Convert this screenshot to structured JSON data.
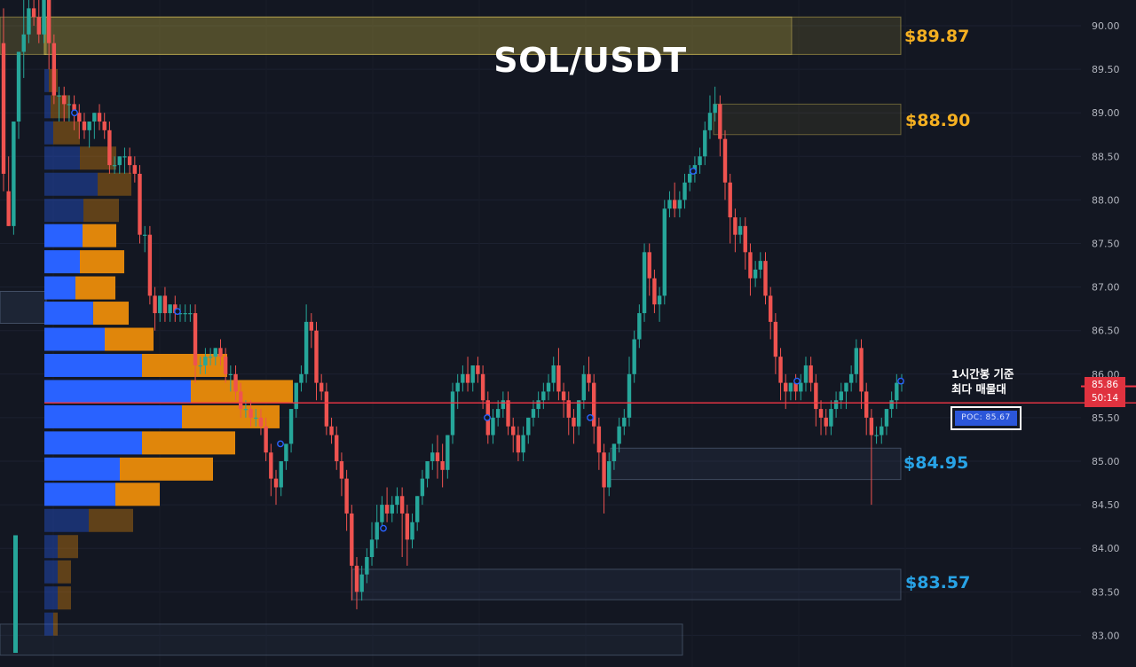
{
  "header": {
    "title": "SOL/USDT"
  },
  "annotation": {
    "line1": "1시간봉 기준",
    "line2": "최다 매물대"
  },
  "poc": {
    "label": "POC",
    "value": "85.67"
  },
  "last_price": {
    "price": "85.86",
    "countdown": "50:14"
  },
  "colors": {
    "background": "#131722",
    "up": "#26a69a",
    "down": "#ef5350",
    "profile_blue": "#2962ff",
    "profile_orange": "#e0860b",
    "resistance_label": "#f5b021",
    "support_label": "#28a3e6",
    "poc_line": "#f23645"
  },
  "chart_data": {
    "type": "candlestick",
    "title": "SOL/USDT",
    "ylim": [
      82.85,
      90.3
    ],
    "y_ticks": [
      "90.00",
      "89.50",
      "89.00",
      "88.50",
      "88.00",
      "87.50",
      "87.00",
      "86.50",
      "86.00",
      "85.50",
      "85.00",
      "84.50",
      "84.00",
      "83.50",
      "83.00"
    ],
    "poc": 85.67,
    "last_price": 85.86,
    "zones": [
      {
        "name": "resistance",
        "label": "$89.87",
        "low": 89.67,
        "high": 90.1
      },
      {
        "name": "resistance",
        "label": "$88.90",
        "low": 88.75,
        "high": 89.1
      },
      {
        "name": "support",
        "label": "$84.95",
        "low": 84.79,
        "high": 85.15
      },
      {
        "name": "support",
        "label": "$83.57",
        "low": 83.41,
        "high": 83.76
      }
    ],
    "volume_profile": {
      "prices": [
        89.37,
        89.07,
        88.77,
        88.48,
        88.18,
        87.88,
        87.59,
        87.29,
        86.99,
        86.7,
        86.4,
        86.1,
        85.8,
        85.51,
        85.21,
        84.91,
        84.62,
        84.32,
        84.02,
        83.73,
        83.43,
        83.13
      ],
      "buy": [
        5,
        7,
        10,
        40,
        60,
        44,
        43,
        40,
        35,
        55,
        68,
        110,
        165,
        155,
        110,
        85,
        80,
        50,
        15,
        15,
        15,
        10
      ],
      "sell": [
        10,
        22,
        30,
        41,
        38,
        40,
        38,
        50,
        45,
        40,
        55,
        96,
        115,
        110,
        105,
        105,
        50,
        50,
        23,
        15,
        15,
        5
      ]
    },
    "candles": [
      [
        89.8,
        90.2,
        88.3,
        88.1
      ],
      [
        88.1,
        88.5,
        87.7,
        87.7
      ],
      [
        87.7,
        88.9,
        88.9,
        87.6
      ],
      [
        88.9,
        89.7,
        89.7,
        88.7
      ],
      [
        89.7,
        90.5,
        89.9,
        89.4
      ],
      [
        89.9,
        90.3,
        90.2,
        89.8
      ],
      [
        90.2,
        90.4,
        90.1,
        90.0
      ],
      [
        90.1,
        90.3,
        89.9,
        89.8
      ],
      [
        89.9,
        90.6,
        90.3,
        89.8
      ],
      [
        90.3,
        90.4,
        89.8,
        89.5
      ],
      [
        89.8,
        89.9,
        89.2,
        89.1
      ],
      [
        89.2,
        89.3,
        89.2,
        88.9
      ],
      [
        89.2,
        89.3,
        89.1,
        88.9
      ],
      [
        89.1,
        89.2,
        89.1,
        88.9
      ],
      [
        89.1,
        89.2,
        89.0,
        88.8
      ],
      [
        89.0,
        89.1,
        88.9,
        88.7
      ],
      [
        88.9,
        89.0,
        88.8,
        88.7
      ],
      [
        88.8,
        88.9,
        88.9,
        88.6
      ],
      [
        88.9,
        89.0,
        89.0,
        88.7
      ],
      [
        89.0,
        89.1,
        88.9,
        88.8
      ],
      [
        88.9,
        89.0,
        88.8,
        88.7
      ],
      [
        88.8,
        88.9,
        88.4,
        88.3
      ],
      [
        88.4,
        88.5,
        88.4,
        88.3
      ],
      [
        88.4,
        88.5,
        88.5,
        88.3
      ],
      [
        88.5,
        88.6,
        88.5,
        88.3
      ],
      [
        88.5,
        88.6,
        88.4,
        88.3
      ],
      [
        88.4,
        88.5,
        88.3,
        88.2
      ],
      [
        88.3,
        88.4,
        87.6,
        87.5
      ],
      [
        87.6,
        87.7,
        87.6,
        87.4
      ],
      [
        87.6,
        87.7,
        86.9,
        86.8
      ],
      [
        86.9,
        87.0,
        86.7,
        86.5
      ],
      [
        86.7,
        86.9,
        86.9,
        86.6
      ],
      [
        86.9,
        87.0,
        86.7,
        86.6
      ],
      [
        86.7,
        86.8,
        86.8,
        86.6
      ],
      [
        86.8,
        86.9,
        86.7,
        86.6
      ],
      [
        86.7,
        86.8,
        86.7,
        86.6
      ],
      [
        86.7,
        86.8,
        86.7,
        86.6
      ],
      [
        86.7,
        86.8,
        86.7,
        86.6
      ],
      [
        86.7,
        86.8,
        86.1,
        85.9
      ],
      [
        86.1,
        86.2,
        86.1,
        86.0
      ],
      [
        86.1,
        86.3,
        86.2,
        86.0
      ],
      [
        86.2,
        86.3,
        86.2,
        86.1
      ],
      [
        86.2,
        86.3,
        86.3,
        86.1
      ],
      [
        86.3,
        86.4,
        86.2,
        86.1
      ],
      [
        86.2,
        86.3,
        86.0,
        85.9
      ],
      [
        86.0,
        86.1,
        86.0,
        85.8
      ],
      [
        86.0,
        86.1,
        85.8,
        85.7
      ],
      [
        85.8,
        85.9,
        85.6,
        85.5
      ],
      [
        85.6,
        85.7,
        85.6,
        85.5
      ],
      [
        85.6,
        85.7,
        85.5,
        85.4
      ],
      [
        85.5,
        85.6,
        85.5,
        85.4
      ],
      [
        85.5,
        85.6,
        85.4,
        85.3
      ],
      [
        85.4,
        85.5,
        85.1,
        85.0
      ],
      [
        85.1,
        85.2,
        84.8,
        84.6
      ],
      [
        84.8,
        84.9,
        84.7,
        84.5
      ],
      [
        84.7,
        84.8,
        85.0,
        84.6
      ],
      [
        85.0,
        85.1,
        85.2,
        84.9
      ],
      [
        85.2,
        85.4,
        85.6,
        85.1
      ],
      [
        85.6,
        85.8,
        85.9,
        85.5
      ],
      [
        85.9,
        86.1,
        86.0,
        85.8
      ],
      [
        86.0,
        86.8,
        86.6,
        85.9
      ],
      [
        86.6,
        86.7,
        86.5,
        86.3
      ],
      [
        86.5,
        86.6,
        85.9,
        85.7
      ],
      [
        85.9,
        86.0,
        85.8,
        85.7
      ],
      [
        85.8,
        85.9,
        85.4,
        85.3
      ],
      [
        85.4,
        85.5,
        85.3,
        85.2
      ],
      [
        85.3,
        85.4,
        85.0,
        84.9
      ],
      [
        85.0,
        85.1,
        84.8,
        84.6
      ],
      [
        84.8,
        84.9,
        84.4,
        84.2
      ],
      [
        84.4,
        84.5,
        83.8,
        83.4
      ],
      [
        83.8,
        83.9,
        83.5,
        83.3
      ],
      [
        83.5,
        83.8,
        83.7,
        83.4
      ],
      [
        83.7,
        84.0,
        83.9,
        83.6
      ],
      [
        83.9,
        84.3,
        84.1,
        83.8
      ],
      [
        84.1,
        84.5,
        84.3,
        84.0
      ],
      [
        84.3,
        84.6,
        84.5,
        84.2
      ],
      [
        84.5,
        84.7,
        84.4,
        84.3
      ],
      [
        84.4,
        84.6,
        84.5,
        84.3
      ],
      [
        84.5,
        84.7,
        84.6,
        84.4
      ],
      [
        84.6,
        84.7,
        84.4,
        83.9
      ],
      [
        84.4,
        84.5,
        84.1,
        83.8
      ],
      [
        84.1,
        84.4,
        84.3,
        84.0
      ],
      [
        84.3,
        84.6,
        84.6,
        84.2
      ],
      [
        84.6,
        84.9,
        84.8,
        84.5
      ],
      [
        84.8,
        85.0,
        85.0,
        84.7
      ],
      [
        85.0,
        85.2,
        85.1,
        84.9
      ],
      [
        85.1,
        85.3,
        85.0,
        84.8
      ],
      [
        85.0,
        85.2,
        84.9,
        84.7
      ],
      [
        84.9,
        85.3,
        85.3,
        84.8
      ],
      [
        85.3,
        85.9,
        85.8,
        85.2
      ],
      [
        85.8,
        86.0,
        85.9,
        85.6
      ],
      [
        85.9,
        86.1,
        86.0,
        85.8
      ],
      [
        86.0,
        86.2,
        85.9,
        85.8
      ],
      [
        85.9,
        86.1,
        86.1,
        85.8
      ],
      [
        86.1,
        86.2,
        86.0,
        85.9
      ],
      [
        86.0,
        86.1,
        85.7,
        85.6
      ],
      [
        85.7,
        85.8,
        85.3,
        85.2
      ],
      [
        85.3,
        85.6,
        85.5,
        85.2
      ],
      [
        85.5,
        85.7,
        85.6,
        85.4
      ],
      [
        85.6,
        85.8,
        85.7,
        85.5
      ],
      [
        85.7,
        85.8,
        85.4,
        85.3
      ],
      [
        85.4,
        85.5,
        85.3,
        85.1
      ],
      [
        85.3,
        85.4,
        85.1,
        85.0
      ],
      [
        85.1,
        85.4,
        85.3,
        85.0
      ],
      [
        85.3,
        85.5,
        85.5,
        85.2
      ],
      [
        85.5,
        85.7,
        85.6,
        85.4
      ],
      [
        85.6,
        85.8,
        85.7,
        85.5
      ],
      [
        85.7,
        85.9,
        85.8,
        85.6
      ],
      [
        85.8,
        86.0,
        85.9,
        85.7
      ],
      [
        85.9,
        86.2,
        86.1,
        85.8
      ],
      [
        86.1,
        86.3,
        85.8,
        85.7
      ],
      [
        85.8,
        85.9,
        85.7,
        85.5
      ],
      [
        85.7,
        85.8,
        85.5,
        85.3
      ],
      [
        85.5,
        85.6,
        85.4,
        85.2
      ],
      [
        85.4,
        85.7,
        85.7,
        85.3
      ],
      [
        85.7,
        86.1,
        86.0,
        85.6
      ],
      [
        86.0,
        86.2,
        85.9,
        85.8
      ],
      [
        85.9,
        86.0,
        85.4,
        85.2
      ],
      [
        85.4,
        85.5,
        85.1,
        84.9
      ],
      [
        85.1,
        85.2,
        84.7,
        84.4
      ],
      [
        84.7,
        85.1,
        85.0,
        84.6
      ],
      [
        85.0,
        85.2,
        85.2,
        84.9
      ],
      [
        85.2,
        85.5,
        85.4,
        85.1
      ],
      [
        85.4,
        85.6,
        85.5,
        85.3
      ],
      [
        85.5,
        86.2,
        86.0,
        85.4
      ],
      [
        86.0,
        86.5,
        86.4,
        85.9
      ],
      [
        86.4,
        86.8,
        86.7,
        86.3
      ],
      [
        86.7,
        87.5,
        87.4,
        86.6
      ],
      [
        87.4,
        87.5,
        87.1,
        86.9
      ],
      [
        87.1,
        87.2,
        86.8,
        86.7
      ],
      [
        86.8,
        87.0,
        86.9,
        86.6
      ],
      [
        86.9,
        88.0,
        87.9,
        86.8
      ],
      [
        87.9,
        88.1,
        88.0,
        87.8
      ],
      [
        88.0,
        88.2,
        87.9,
        87.8
      ],
      [
        87.9,
        88.1,
        88.0,
        87.8
      ],
      [
        88.0,
        88.3,
        88.2,
        87.9
      ],
      [
        88.2,
        88.4,
        88.3,
        88.1
      ],
      [
        88.3,
        88.5,
        88.4,
        88.2
      ],
      [
        88.4,
        88.6,
        88.5,
        88.3
      ],
      [
        88.5,
        88.9,
        88.8,
        88.4
      ],
      [
        88.8,
        89.2,
        89.0,
        88.7
      ],
      [
        89.0,
        89.3,
        89.1,
        88.9
      ],
      [
        89.1,
        89.2,
        88.7,
        88.5
      ],
      [
        88.7,
        88.8,
        88.2,
        88.0
      ],
      [
        88.2,
        88.3,
        87.8,
        87.5
      ],
      [
        87.8,
        87.9,
        87.6,
        87.4
      ],
      [
        87.6,
        87.8,
        87.7,
        87.5
      ],
      [
        87.7,
        87.8,
        87.4,
        87.2
      ],
      [
        87.4,
        87.5,
        87.1,
        86.9
      ],
      [
        87.1,
        87.3,
        87.2,
        87.0
      ],
      [
        87.2,
        87.4,
        87.3,
        87.1
      ],
      [
        87.3,
        87.4,
        86.9,
        86.8
      ],
      [
        86.9,
        87.0,
        86.6,
        86.4
      ],
      [
        86.6,
        86.7,
        86.2,
        86.0
      ],
      [
        86.2,
        86.3,
        85.9,
        85.7
      ],
      [
        85.9,
        86.0,
        85.8,
        85.6
      ],
      [
        85.8,
        85.9,
        85.9,
        85.7
      ],
      [
        85.9,
        86.0,
        85.8,
        85.7
      ],
      [
        85.8,
        86.0,
        85.9,
        85.7
      ],
      [
        85.9,
        86.2,
        86.1,
        85.8
      ],
      [
        86.1,
        86.2,
        85.9,
        85.8
      ],
      [
        85.9,
        86.0,
        85.6,
        85.4
      ],
      [
        85.6,
        85.7,
        85.5,
        85.3
      ],
      [
        85.5,
        85.6,
        85.4,
        85.3
      ],
      [
        85.4,
        85.7,
        85.6,
        85.3
      ],
      [
        85.6,
        85.8,
        85.7,
        85.5
      ],
      [
        85.7,
        85.9,
        85.8,
        85.6
      ],
      [
        85.8,
        85.9,
        85.9,
        85.6
      ],
      [
        85.9,
        86.1,
        86.0,
        85.8
      ],
      [
        86.0,
        86.4,
        86.3,
        85.9
      ],
      [
        86.3,
        86.4,
        85.8,
        85.6
      ],
      [
        85.8,
        85.9,
        85.5,
        85.3
      ],
      [
        85.5,
        85.6,
        85.3,
        84.5
      ],
      [
        85.3,
        85.4,
        85.3,
        85.2
      ],
      [
        85.3,
        85.5,
        85.4,
        85.2
      ],
      [
        85.4,
        85.6,
        85.6,
        85.3
      ],
      [
        85.6,
        85.8,
        85.7,
        85.5
      ],
      [
        85.7,
        86.0,
        85.9,
        85.6
      ],
      [
        85.9,
        86.0,
        85.9,
        85.8
      ]
    ]
  }
}
